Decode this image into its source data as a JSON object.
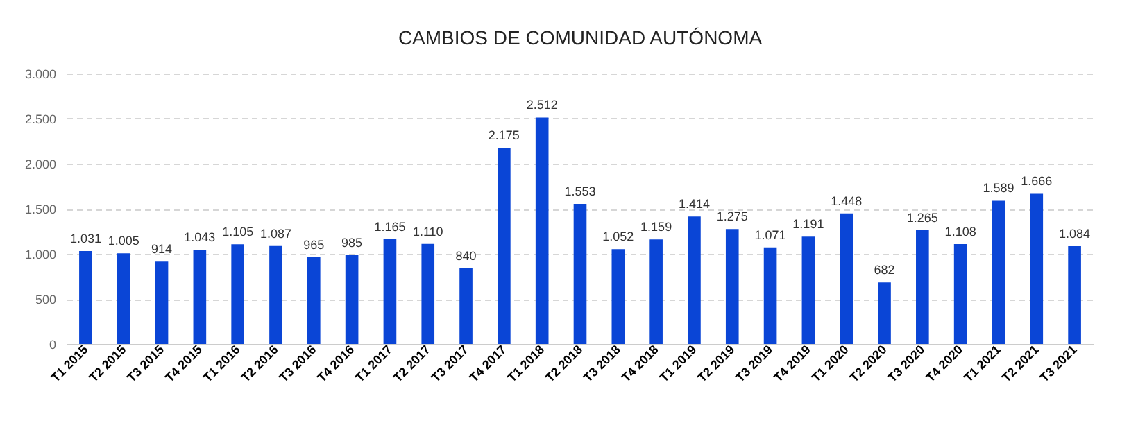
{
  "chart_data": {
    "type": "bar",
    "title": "CAMBIOS DE COMUNIDAD AUTÓNOMA",
    "categories": [
      "T1 2015",
      "T2 2015",
      "T3 2015",
      "T4 2015",
      "T1 2016",
      "T2 2016",
      "T3 2016",
      "T4 2016",
      "T1 2017",
      "T2 2017",
      "T3 2017",
      "T4 2017",
      "T1 2018",
      "T2 2018",
      "T3 2018",
      "T4 2018",
      "T1 2019",
      "T2 2019",
      "T3 2019",
      "T4 2019",
      "T1 2020",
      "T2 2020",
      "T3 2020",
      "T4 2020",
      "T1 2021",
      "T2 2021",
      "T3 2021"
    ],
    "values": [
      1031,
      1005,
      914,
      1043,
      1105,
      1087,
      965,
      985,
      1165,
      1110,
      840,
      2175,
      2512,
      1553,
      1052,
      1159,
      1414,
      1275,
      1071,
      1191,
      1448,
      682,
      1265,
      1108,
      1589,
      1666,
      1084
    ],
    "value_labels": [
      "1.031",
      "1.005",
      "914",
      "1.043",
      "1.105",
      "1.087",
      "965",
      "985",
      "1.165",
      "1.110",
      "840",
      "2.175",
      "2.512",
      "1.553",
      "1.052",
      "1.159",
      "1.414",
      "1.275",
      "1.071",
      "1.191",
      "1.448",
      "682",
      "1.265",
      "1.108",
      "1.589",
      "1.666",
      "1.084"
    ],
    "color": "#0a45d6",
    "ylim": [
      0,
      3000
    ],
    "yticks": [
      0,
      {
        "value": 500,
        "label": "500"
      },
      {
        "value": 1000,
        "label": "1.000"
      },
      {
        "value": 1500,
        "label": "1.500"
      },
      {
        "value": 2000,
        "label": "2.000"
      },
      {
        "value": 2500,
        "label": "2.500"
      },
      {
        "value": 3000,
        "label": "3.000"
      }
    ],
    "grid": "y"
  }
}
